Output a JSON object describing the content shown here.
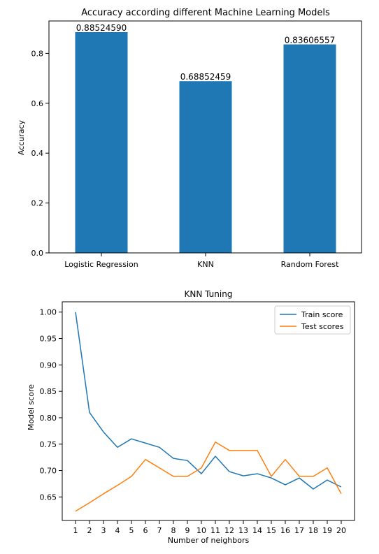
{
  "chart_data": [
    {
      "type": "bar",
      "title": "Accuracy according different Machine Learning Models",
      "xlabel": "",
      "ylabel": "Accuracy",
      "categories": [
        "Logistic Regression",
        "KNN",
        "Random Forest"
      ],
      "values": [
        0.8852459,
        0.68852459,
        0.83606557
      ],
      "value_labels": [
        "0.88524590",
        "0.68852459",
        "0.83606557"
      ],
      "ylim": [
        0,
        0.93
      ],
      "yticks": [
        0.0,
        0.2,
        0.4,
        0.6,
        0.8
      ],
      "ytick_labels": [
        "0.0",
        "0.2",
        "0.4",
        "0.6",
        "0.8"
      ],
      "bar_color": "#1f77b4",
      "grid": false
    },
    {
      "type": "line",
      "title": "KNN Tuning",
      "xlabel": "Number of neighbors",
      "ylabel": "Model score",
      "x": [
        1,
        2,
        3,
        4,
        5,
        6,
        7,
        8,
        9,
        10,
        11,
        12,
        13,
        14,
        15,
        16,
        17,
        18,
        19,
        20
      ],
      "xticks": [
        1,
        2,
        3,
        4,
        5,
        6,
        7,
        8,
        9,
        10,
        11,
        12,
        13,
        14,
        15,
        16,
        17,
        18,
        19,
        20
      ],
      "xtick_labels": [
        "1",
        "2",
        "3",
        "4",
        "5",
        "6",
        "7",
        "8",
        "9",
        "10",
        "11",
        "12",
        "13",
        "14",
        "15",
        "16",
        "17",
        "18",
        "19",
        "20"
      ],
      "xlim": [
        0.05,
        20.95
      ],
      "ylim": [
        0.6055,
        1.0195
      ],
      "yticks": [
        0.65,
        0.7,
        0.75,
        0.8,
        0.85,
        0.9,
        0.95,
        1.0
      ],
      "ytick_labels": [
        "0.65",
        "0.70",
        "0.75",
        "0.80",
        "0.85",
        "0.90",
        "0.95",
        "1.00"
      ],
      "series": [
        {
          "name": "Train score",
          "color": "#1f77b4",
          "values": [
            1.0,
            0.81,
            0.773,
            0.744,
            0.76,
            0.752,
            0.744,
            0.723,
            0.719,
            0.694,
            0.727,
            0.698,
            0.69,
            0.694,
            0.686,
            0.673,
            0.686,
            0.665,
            0.682,
            0.669
          ]
        },
        {
          "name": "Test scores",
          "color": "#ff7f0e",
          "values": [
            0.623,
            0.639,
            0.656,
            0.672,
            0.689,
            0.721,
            0.705,
            0.689,
            0.689,
            0.705,
            0.754,
            0.738,
            0.738,
            0.738,
            0.689,
            0.721,
            0.689,
            0.689,
            0.705,
            0.656
          ]
        }
      ],
      "legend": "top-right",
      "grid": false
    }
  ]
}
